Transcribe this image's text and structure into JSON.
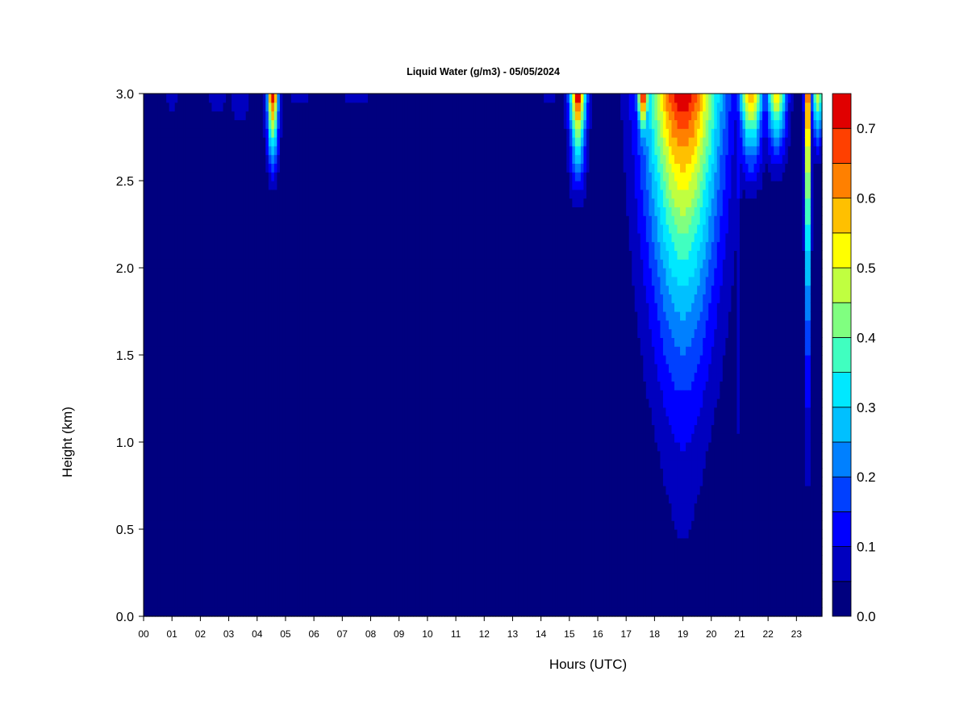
{
  "chart_data": {
    "type": "heatmap",
    "title": "Liquid Water (g/m3) - 05/05/2024",
    "xlabel": "Hours (UTC)",
    "ylabel": "Height (km)",
    "xlim": [
      0,
      23.9
    ],
    "ylim": [
      0,
      3.0
    ],
    "x_ticks": [
      0,
      1,
      2,
      3,
      4,
      5,
      6,
      7,
      8,
      9,
      10,
      11,
      12,
      13,
      14,
      15,
      16,
      17,
      18,
      19,
      20,
      21,
      22,
      23
    ],
    "x_tick_labels": [
      "00",
      "01",
      "02",
      "03",
      "04",
      "05",
      "06",
      "07",
      "08",
      "09",
      "10",
      "11",
      "12",
      "13",
      "14",
      "15",
      "16",
      "17",
      "18",
      "19",
      "20",
      "21",
      "22",
      "23"
    ],
    "y_ticks": [
      0.0,
      0.5,
      1.0,
      1.5,
      2.0,
      2.5,
      3.0
    ],
    "y_tick_labels": [
      "0.0",
      "0.5",
      "1.0",
      "1.5",
      "2.0",
      "2.5",
      "3.0"
    ],
    "colorbar": {
      "levels": [
        0.0,
        0.05,
        0.1,
        0.15,
        0.2,
        0.25,
        0.3,
        0.35,
        0.4,
        0.45,
        0.5,
        0.55,
        0.6,
        0.65,
        0.7,
        0.75
      ],
      "colors": [
        "#00007f",
        "#0000bf",
        "#0000ff",
        "#0040ff",
        "#0080ff",
        "#00c0ff",
        "#00e8ff",
        "#40ffc0",
        "#80ff80",
        "#c0ff40",
        "#ffff00",
        "#ffc000",
        "#ff8000",
        "#ff4000",
        "#e00000",
        "#800000"
      ],
      "tick_values": [
        0.0,
        0.1,
        0.2,
        0.3,
        0.4,
        0.5,
        0.6,
        0.7
      ],
      "tick_labels": [
        "0.0",
        "0.1",
        "0.2",
        "0.3",
        "0.4",
        "0.5",
        "0.6",
        "0.7"
      ]
    },
    "features": [
      {
        "hour": 1.0,
        "width": 0.35,
        "peak": 0.06,
        "base_height": 2.75
      },
      {
        "hour": 2.6,
        "width": 0.5,
        "peak": 0.06,
        "base_height": 2.7
      },
      {
        "hour": 3.4,
        "width": 0.6,
        "peak": 0.07,
        "base_height": 2.65
      },
      {
        "hour": 4.55,
        "width": 0.28,
        "peak": 0.75,
        "base_height": 2.35
      },
      {
        "hour": 5.5,
        "width": 1.0,
        "peak": 0.05,
        "base_height": 2.85
      },
      {
        "hour": 7.5,
        "width": 1.2,
        "peak": 0.05,
        "base_height": 2.85
      },
      {
        "hour": 14.3,
        "width": 0.5,
        "peak": 0.06,
        "base_height": 2.85
      },
      {
        "hour": 15.3,
        "width": 0.4,
        "peak": 0.75,
        "base_height": 2.25
      },
      {
        "hour": 17.6,
        "width": 0.3,
        "peak": 0.75,
        "base_height": 2.5
      },
      {
        "hour": 19.0,
        "width": 2.0,
        "peak": 0.72,
        "base_height": 0.0
      },
      {
        "hour": 20.95,
        "width": 0.22,
        "peak": 0.1,
        "base_height": 0.0
      },
      {
        "hour": 21.4,
        "width": 0.6,
        "peak": 0.6,
        "base_height": 2.3
      },
      {
        "hour": 22.3,
        "width": 0.5,
        "peak": 0.55,
        "base_height": 2.4
      },
      {
        "hour": 23.4,
        "width": 0.16,
        "peak": 0.75,
        "base_height": 0.0
      },
      {
        "hour": 23.75,
        "width": 0.3,
        "peak": 0.5,
        "base_height": 2.5
      }
    ]
  }
}
